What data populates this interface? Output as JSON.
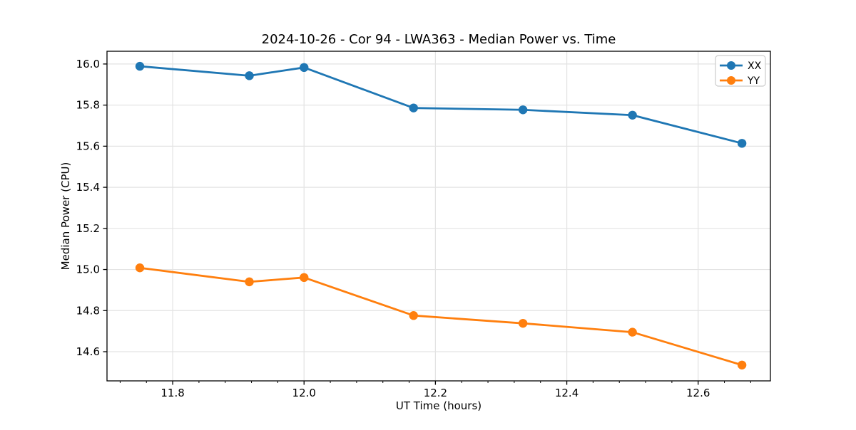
{
  "chart_data": {
    "type": "line",
    "title": "2024-10-26 - Cor 94 - LWA363 - Median Power vs. Time",
    "xlabel": "UT Time (hours)",
    "ylabel": "Median Power (CPU)",
    "xlim": [
      11.7,
      12.71
    ],
    "ylim": [
      14.458,
      16.062
    ],
    "xticks": [
      11.8,
      12.0,
      12.2,
      12.4,
      12.6
    ],
    "yticks": [
      14.6,
      14.8,
      15.0,
      15.2,
      15.4,
      15.6,
      15.8,
      16.0
    ],
    "x_minor_step": 0.04,
    "grid": true,
    "legend_position": "upper right",
    "x": [
      11.75,
      11.9167,
      12.0,
      12.1667,
      12.3333,
      12.5,
      12.6667
    ],
    "series": [
      {
        "name": "XX",
        "color": "#1f77b4",
        "values": [
          15.989,
          15.943,
          15.983,
          15.786,
          15.777,
          15.751,
          15.614
        ]
      },
      {
        "name": "YY",
        "color": "#ff7f0e",
        "values": [
          15.008,
          14.94,
          14.961,
          14.776,
          14.738,
          14.695,
          14.535
        ]
      }
    ],
    "marker": "circle",
    "colors": {
      "grid": "#e3e3e3",
      "axes": "#000000",
      "background": "#ffffff",
      "legend_border": "#cccccc"
    }
  }
}
